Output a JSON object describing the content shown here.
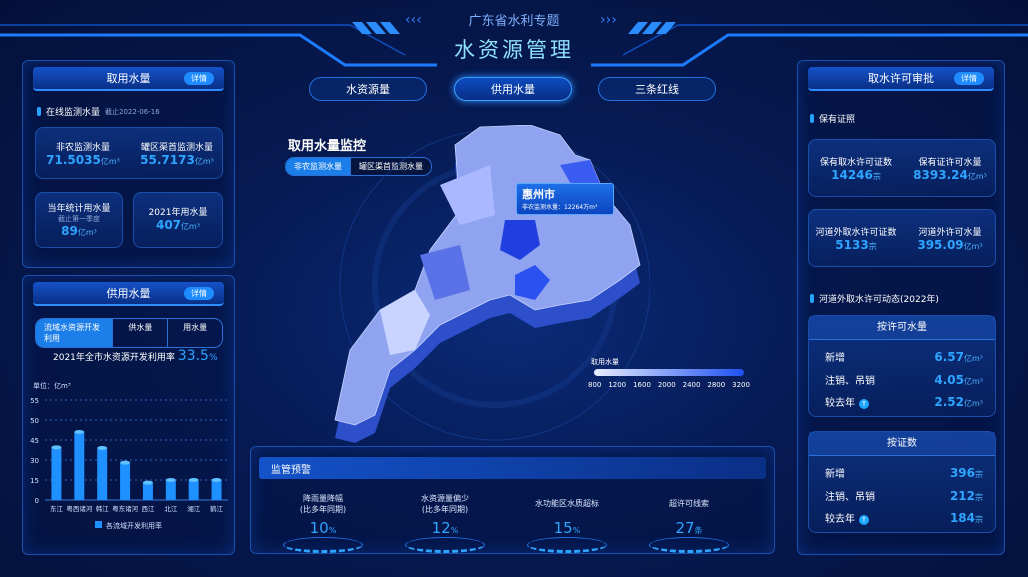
{
  "header": {
    "subtitle": "广东省水利专题",
    "title": "水资源管理"
  },
  "tabs": [
    {
      "label": "水资源量",
      "active": false
    },
    {
      "label": "供用水量",
      "active": true
    },
    {
      "label": "三条红线",
      "active": false
    }
  ],
  "left_top": {
    "title": "取用水量",
    "detail": "详情",
    "section": "在线监测水量",
    "as_of": "截止2022-06-16",
    "cards": [
      {
        "label": "非农监测水量",
        "value": "71.5035",
        "unit": "亿m³"
      },
      {
        "label": "罐区渠首监测水量",
        "value": "55.7173",
        "unit": "亿m³"
      },
      {
        "label": "当年统计用水量",
        "note": "截止第一季度",
        "value": "89",
        "unit": "亿m³"
      },
      {
        "label": "2021年用水量",
        "value": "407",
        "unit": "亿m³"
      }
    ]
  },
  "left_bottom": {
    "title": "供用水量",
    "detail": "详情",
    "segments": [
      "流域水资源开发利用",
      "供水量",
      "用水量"
    ],
    "rate_label": "2021年全市水资源开发利用率",
    "rate_value": "33.5",
    "rate_unit": "%"
  },
  "chart_data": {
    "type": "bar",
    "unit_label": "单位：亿m³",
    "categories": [
      "东江",
      "粤西诸河",
      "韩江",
      "粤东诸河",
      "西江",
      "北江",
      "湘江",
      "鹤江"
    ],
    "yticks": [
      0,
      15,
      30,
      45,
      50,
      55
    ],
    "series": [
      {
        "name": "各流域开发利用率",
        "values": [
          39.5,
          47,
          39,
          28,
          13,
          15,
          15,
          15
        ]
      }
    ],
    "legend": "bottom",
    "color": "#1e90ff"
  },
  "map": {
    "title": "取用水量监控",
    "toggle": [
      "非农监测水量",
      "罐区渠首监测水量"
    ],
    "tooltip_city": "惠州市",
    "tooltip_label": "非农监测水量：",
    "tooltip_value": "12264万m³",
    "legend_title": "取用水量",
    "legend_ticks": [
      "800",
      "1200",
      "1600",
      "2000",
      "2400",
      "2800",
      "3200"
    ]
  },
  "bottom": {
    "title": "监管预警",
    "items": [
      {
        "l1": "降雨量降幅",
        "l2": "(比多年同期)",
        "value": "10",
        "unit": "%"
      },
      {
        "l1": "水资源量偏少",
        "l2": "(比多年同期)",
        "value": "12",
        "unit": "%"
      },
      {
        "l1": "水功能区水质超标",
        "l2": "",
        "value": "15",
        "unit": "%"
      },
      {
        "l1": "超许可线索",
        "l2": "",
        "value": "27",
        "unit": "条"
      }
    ]
  },
  "right": {
    "title": "取水许可审批",
    "detail": "详情",
    "section1": "保有证照",
    "cards": [
      {
        "label": "保有取水许可证数",
        "value": "14246",
        "unit": "宗"
      },
      {
        "label": "保有证许可水量",
        "value": "8393.24",
        "unit": "亿m³"
      },
      {
        "label": "河道外取水许可证数",
        "value": "5133",
        "unit": "宗"
      },
      {
        "label": "河道外许可水量",
        "value": "395.09",
        "unit": "亿m³"
      }
    ],
    "section2": "河道外取水许可动态(2022年)",
    "box1": {
      "title": "按许可水量",
      "rows": [
        {
          "label": "新增",
          "value": "6.57",
          "unit": "亿m³"
        },
        {
          "label": "注销、吊销",
          "value": "4.05",
          "unit": "亿m³"
        },
        {
          "label": "较去年",
          "value": "2.52",
          "unit": "亿m³",
          "icon": "arrow-up-icon"
        }
      ]
    },
    "box2": {
      "title": "按证数",
      "rows": [
        {
          "label": "新增",
          "value": "396",
          "unit": "宗"
        },
        {
          "label": "注销、吊销",
          "value": "212",
          "unit": "宗"
        },
        {
          "label": "较去年",
          "value": "184",
          "unit": "宗",
          "icon": "arrow-up-icon"
        }
      ]
    }
  }
}
